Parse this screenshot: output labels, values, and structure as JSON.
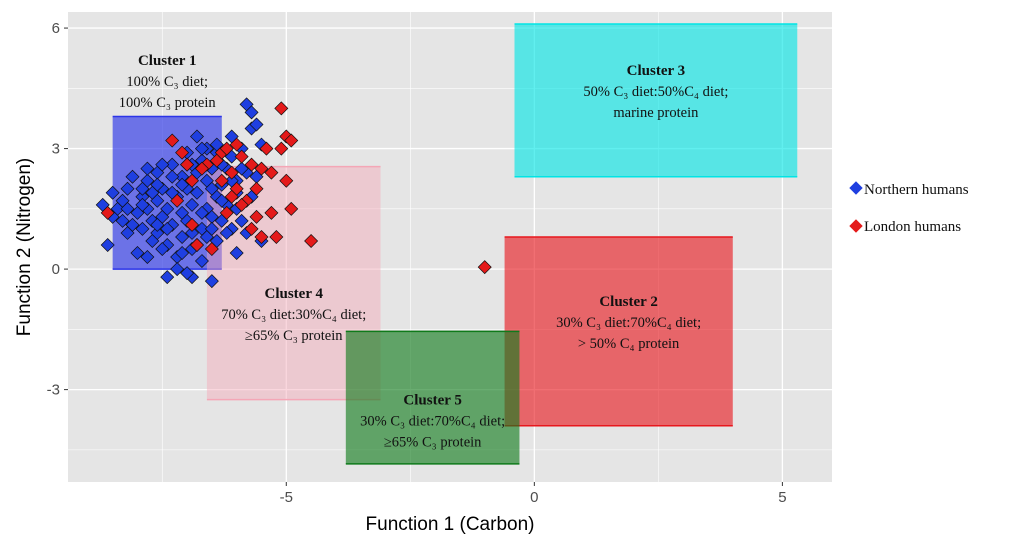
{
  "chart_data": {
    "type": "scatter",
    "xlabel": "Function 1 (Carbon)",
    "ylabel": "Function 2 (Nitrogen)",
    "xlim": [
      -9.4,
      6.0
    ],
    "ylim": [
      -5.3,
      6.4
    ],
    "xticks": [
      -5,
      0,
      5
    ],
    "yticks": [
      -3,
      0,
      3,
      6
    ],
    "grid": true,
    "legend_position": "right",
    "colors": {
      "panel_bg": "#e5e5e5",
      "grid": "#ffffff",
      "northern": "#1f3fe0",
      "london": "#e41a1a",
      "cluster1": "#2b34e8",
      "cluster2": "#e8171d",
      "cluster3": "#00e5e5",
      "cluster4": "#f4a6b6",
      "cluster5": "#0f7a1a"
    },
    "clusters": [
      {
        "id": "cluster1",
        "x": [
          -8.5,
          -6.3
        ],
        "y": [
          0.0,
          3.8
        ],
        "opacity": 0.65,
        "title": "Cluster 1",
        "lines": [
          "100% C₃ diet;",
          "100% C₃ protein"
        ]
      },
      {
        "id": "cluster4",
        "x": [
          -6.6,
          -3.1
        ],
        "y": [
          -3.25,
          2.55
        ],
        "opacity": 0.45,
        "title": "Cluster 4",
        "lines": [
          "70% C₃ diet:30%C₄ diet;",
          "≥65% C₃ protein"
        ]
      },
      {
        "id": "cluster3",
        "x": [
          -0.4,
          5.3
        ],
        "y": [
          2.3,
          6.1
        ],
        "opacity": 0.62,
        "title": "Cluster 3",
        "lines": [
          "50% C₃ diet:50%C₄ diet;",
          "marine protein"
        ]
      },
      {
        "id": "cluster2",
        "x": [
          -0.6,
          4.0
        ],
        "y": [
          -3.9,
          0.8
        ],
        "opacity": 0.62,
        "title": "Cluster 2",
        "lines": [
          "30% C₃ diet:70%C₄ diet;",
          "> 50% C₄ protein"
        ]
      },
      {
        "id": "cluster5",
        "x": [
          -3.8,
          -0.3
        ],
        "y": [
          -4.85,
          -1.55
        ],
        "opacity": 0.62,
        "title": "Cluster 5",
        "lines": [
          "30% C₃ diet:70%C₄ diet;",
          "≥65% C₃ protein"
        ]
      }
    ],
    "series": [
      {
        "name": "Northern humans",
        "shape": "diamond",
        "points": [
          [
            -8.7,
            1.6
          ],
          [
            -8.5,
            1.9
          ],
          [
            -8.6,
            0.6
          ],
          [
            -8.3,
            1.2
          ],
          [
            -8.4,
            1.5
          ],
          [
            -8.2,
            2.0
          ],
          [
            -8.2,
            0.9
          ],
          [
            -8.0,
            1.4
          ],
          [
            -8.0,
            0.4
          ],
          [
            -7.9,
            1.8
          ],
          [
            -7.9,
            1.0
          ],
          [
            -7.8,
            2.2
          ],
          [
            -7.8,
            1.5
          ],
          [
            -7.7,
            0.7
          ],
          [
            -7.7,
            1.2
          ],
          [
            -7.6,
            2.4
          ],
          [
            -7.6,
            1.7
          ],
          [
            -7.6,
            0.9
          ],
          [
            -7.5,
            1.3
          ],
          [
            -7.5,
            2.0
          ],
          [
            -7.4,
            -0.2
          ],
          [
            -7.4,
            1.5
          ],
          [
            -7.4,
            0.6
          ],
          [
            -7.3,
            2.6
          ],
          [
            -7.3,
            1.1
          ],
          [
            -7.2,
            1.8
          ],
          [
            -7.2,
            0.3
          ],
          [
            -7.1,
            2.3
          ],
          [
            -7.1,
            1.4
          ],
          [
            -7.1,
            0.8
          ],
          [
            -7.0,
            2.9
          ],
          [
            -7.0,
            2.0
          ],
          [
            -7.0,
            1.2
          ],
          [
            -6.9,
            -0.2
          ],
          [
            -6.9,
            1.6
          ],
          [
            -6.9,
            0.5
          ],
          [
            -6.8,
            3.3
          ],
          [
            -6.8,
            2.4
          ],
          [
            -6.8,
            1.9
          ],
          [
            -6.7,
            1.0
          ],
          [
            -6.7,
            2.7
          ],
          [
            -6.7,
            0.2
          ],
          [
            -6.6,
            3.0
          ],
          [
            -6.6,
            1.5
          ],
          [
            -6.6,
            2.2
          ],
          [
            -6.5,
            2.5
          ],
          [
            -6.5,
            1.3
          ],
          [
            -6.5,
            -0.3
          ],
          [
            -6.4,
            1.8
          ],
          [
            -6.4,
            0.7
          ],
          [
            -6.4,
            2.9
          ],
          [
            -6.3,
            2.1
          ],
          [
            -6.3,
            1.2
          ],
          [
            -6.2,
            2.5
          ],
          [
            -6.2,
            1.6
          ],
          [
            -6.1,
            2.8
          ],
          [
            -6.1,
            1.0
          ],
          [
            -6.0,
            2.2
          ],
          [
            -6.0,
            1.5
          ],
          [
            -5.9,
            3.0
          ],
          [
            -5.9,
            1.2
          ],
          [
            -5.8,
            4.1
          ],
          [
            -5.8,
            2.4
          ],
          [
            -5.7,
            3.9
          ],
          [
            -5.7,
            3.5
          ],
          [
            -5.7,
            1.8
          ],
          [
            -5.6,
            3.6
          ],
          [
            -5.5,
            0.7
          ],
          [
            -5.8,
            0.9
          ],
          [
            -8.1,
            2.3
          ],
          [
            -7.8,
            0.3
          ],
          [
            -7.5,
            0.5
          ],
          [
            -7.2,
            0.0
          ],
          [
            -7.0,
            -0.1
          ],
          [
            -6.9,
            0.9
          ],
          [
            -8.3,
            1.7
          ],
          [
            -8.1,
            1.1
          ],
          [
            -7.9,
            2.0
          ],
          [
            -7.6,
            1.1
          ],
          [
            -7.3,
            1.9
          ],
          [
            -7.1,
            2.1
          ],
          [
            -6.9,
            2.6
          ],
          [
            -6.7,
            1.4
          ],
          [
            -6.6,
            0.8
          ],
          [
            -6.5,
            2.0
          ],
          [
            -6.3,
            2.6
          ],
          [
            -6.2,
            0.9
          ],
          [
            -6.0,
            1.9
          ],
          [
            -5.9,
            2.5
          ],
          [
            -6.1,
            3.3
          ],
          [
            -6.4,
            3.1
          ],
          [
            -6.7,
            3.0
          ],
          [
            -7.0,
            2.6
          ],
          [
            -7.3,
            2.3
          ],
          [
            -7.6,
            2.1
          ],
          [
            -7.9,
            1.6
          ],
          [
            -8.2,
            1.5
          ],
          [
            -8.5,
            1.3
          ],
          [
            -7.4,
            1.0
          ],
          [
            -7.7,
            1.9
          ],
          [
            -6.8,
            0.6
          ],
          [
            -6.5,
            1.0
          ],
          [
            -6.3,
            1.7
          ],
          [
            -6.1,
            2.2
          ],
          [
            -5.6,
            2.3
          ],
          [
            -5.5,
            3.1
          ],
          [
            -6.0,
            0.4
          ],
          [
            -7.1,
            0.4
          ],
          [
            -7.5,
            2.6
          ],
          [
            -7.8,
            2.5
          ]
        ]
      },
      {
        "name": "London humans",
        "shape": "diamond",
        "points": [
          [
            -8.6,
            1.4
          ],
          [
            -7.3,
            3.2
          ],
          [
            -7.1,
            2.9
          ],
          [
            -6.9,
            2.2
          ],
          [
            -6.6,
            2.6
          ],
          [
            -6.4,
            2.7
          ],
          [
            -6.3,
            2.9
          ],
          [
            -6.2,
            3.0
          ],
          [
            -6.1,
            2.4
          ],
          [
            -6.0,
            3.1
          ],
          [
            -5.9,
            2.8
          ],
          [
            -5.7,
            2.6
          ],
          [
            -5.6,
            2.0
          ],
          [
            -5.5,
            2.5
          ],
          [
            -5.3,
            2.4
          ],
          [
            -5.3,
            1.4
          ],
          [
            -5.5,
            0.8
          ],
          [
            -5.8,
            1.7
          ],
          [
            -6.0,
            2.0
          ],
          [
            -6.1,
            1.8
          ],
          [
            -5.4,
            3.0
          ],
          [
            -5.1,
            3.0
          ],
          [
            -5.0,
            2.2
          ],
          [
            -4.9,
            1.5
          ],
          [
            -5.1,
            4.0
          ],
          [
            -5.0,
            3.3
          ],
          [
            -4.9,
            3.2
          ],
          [
            -4.5,
            0.7
          ],
          [
            -5.2,
            0.8
          ],
          [
            -5.7,
            1.0
          ],
          [
            -6.8,
            0.6
          ],
          [
            -6.5,
            0.5
          ],
          [
            -6.2,
            1.4
          ],
          [
            -7.0,
            2.6
          ],
          [
            -6.7,
            2.5
          ],
          [
            -6.3,
            2.2
          ],
          [
            -5.9,
            1.6
          ],
          [
            -5.6,
            1.3
          ],
          [
            -7.2,
            1.7
          ],
          [
            -6.9,
            1.1
          ],
          [
            -1.0,
            0.05
          ]
        ]
      }
    ]
  }
}
